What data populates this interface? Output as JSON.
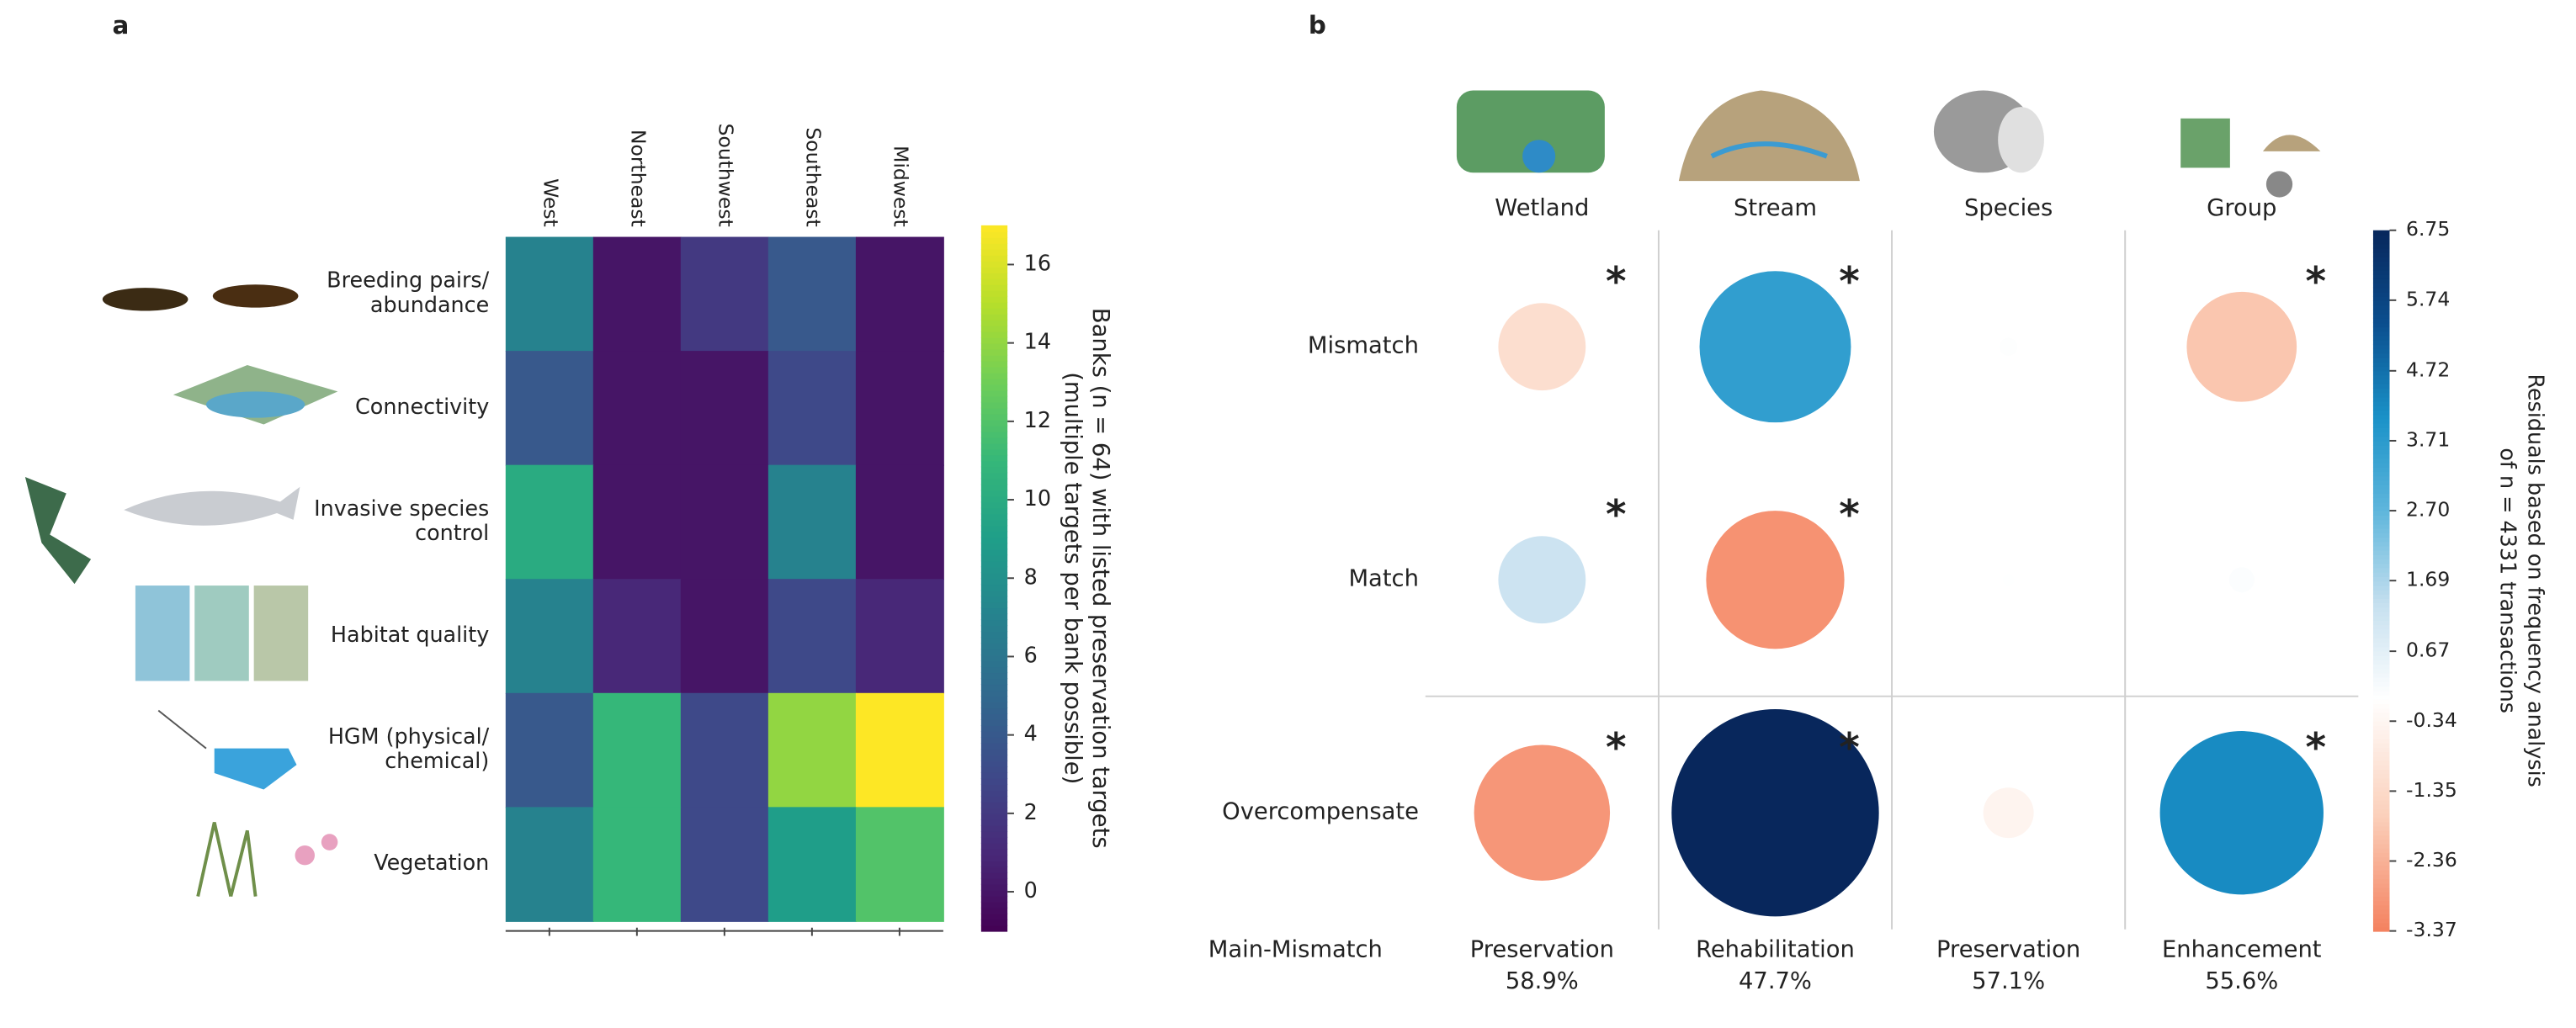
{
  "chart_data": [
    {
      "type": "heatmap",
      "panel_label": "a",
      "columns": [
        "West",
        "Northeast",
        "Southwest",
        "Southeast",
        "Midwest"
      ],
      "rows": [
        [
          "Breeding pairs/",
          "abundance"
        ],
        [
          "Connectivity"
        ],
        [
          "Invasive species",
          "control"
        ],
        [
          "Habitat quality"
        ],
        [
          "HGM (physical/",
          "chemical)"
        ],
        [
          "Vegetation"
        ]
      ],
      "values": [
        [
          7,
          0,
          2,
          4,
          0
        ],
        [
          4,
          0,
          0,
          3,
          0
        ],
        [
          10,
          0,
          0,
          7,
          0
        ],
        [
          7,
          1,
          0,
          3,
          1
        ],
        [
          4,
          11,
          3,
          14,
          17
        ],
        [
          7,
          11,
          3,
          9,
          12
        ]
      ],
      "clim": [
        -1,
        17
      ],
      "cticks": [
        0,
        2,
        4,
        6,
        8,
        10,
        12,
        14,
        16
      ],
      "colorbar_label": [
        "Banks (n = 64) with listed preservation targets",
        "(multiple targets per bank possible)"
      ],
      "colormap": [
        "#440154",
        "#482878",
        "#3e4989",
        "#31688e",
        "#26828e",
        "#1f9e89",
        "#35b779",
        "#6ece58",
        "#b5de2b",
        "#fde725"
      ]
    },
    {
      "type": "bubble_matrix",
      "panel_label": "b",
      "columns": [
        "Wetland",
        "Stream",
        "Species",
        "Group"
      ],
      "rows": [
        "Mismatch",
        "Match",
        "Overcompensate"
      ],
      "values": [
        [
          -1.2,
          3.6,
          0.05,
          -1.9
        ],
        [
          1.2,
          -3.0,
          0.02,
          0.1
        ],
        [
          -2.9,
          6.75,
          -0.4,
          4.2
        ]
      ],
      "significant": [
        [
          true,
          true,
          false,
          true
        ],
        [
          true,
          true,
          false,
          false
        ],
        [
          true,
          true,
          false,
          true
        ]
      ],
      "marker": "*",
      "clim": [
        -3.37,
        6.75
      ],
      "cticks": [
        -3.37,
        -2.36,
        -1.35,
        -0.34,
        0.67,
        1.69,
        {
          "value": 2.7,
          "label": "2.70"
        },
        3.71,
        4.72,
        5.74,
        6.75
      ],
      "colorbar_label": [
        "Residuals based on frequency analysis",
        "of n = 4331 transactions"
      ],
      "colormap": {
        "negative": [
          "#ffffff",
          "#fbd0bb",
          "#f4805e"
        ],
        "positive": [
          "#ffffff",
          "#c6e0ef",
          "#5fb6dc",
          "#1a92c8",
          "#0b4f8f",
          "#08275c"
        ]
      },
      "footer_label": "Main-Mismatch",
      "footer": [
        {
          "label": "Preservation",
          "share": "58.9%"
        },
        {
          "label": "Rehabilitation",
          "share": "47.7%"
        },
        {
          "label": "Preservation",
          "share": "57.1%"
        },
        {
          "label": "Enhancement",
          "share": "55.6%"
        }
      ]
    }
  ]
}
